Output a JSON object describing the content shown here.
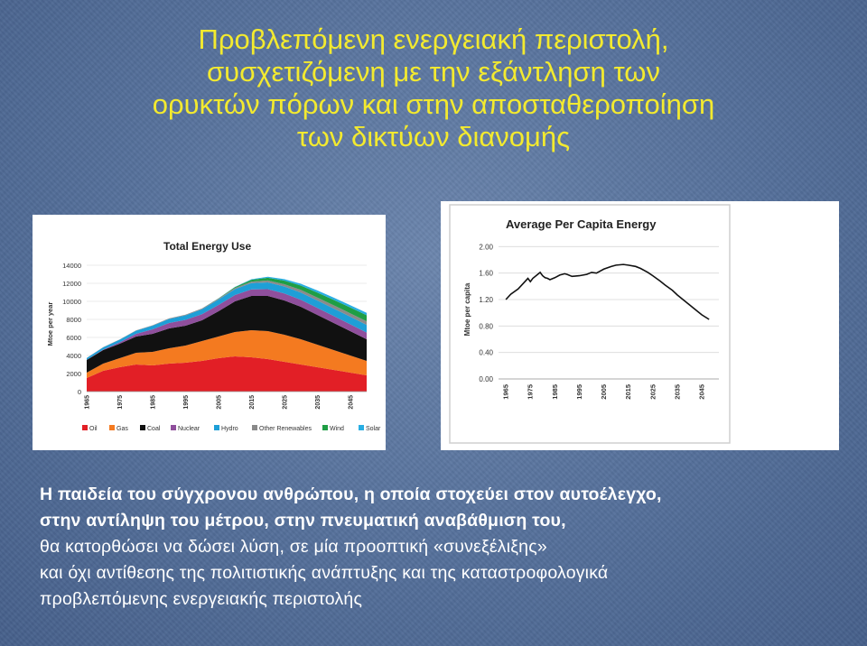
{
  "slide": {
    "title_lines": [
      "Προβλεπόμενη ενεργειακή περιστολή,",
      "συσχετιζόμενη με την εξάντληση των",
      "ορυκτών πόρων και στην αποσταθεροποίηση",
      "των δικτύων διανομής"
    ],
    "body_lines": [
      "Η παιδεία του σύγχρονου ανθρώπου, η οποία στοχεύει στον αυτοέλεγχο,",
      "στην αντίληψη του μέτρου, στην πνευματική αναβάθμιση του,",
      " θα κατορθώσει να δώσει λύση, σε μία προοπτική «συνεξέλιξης»",
      "και όχι αντίθεσης της πολιτιστικής ανάπτυξης και της καταστροφολογικά",
      " προβλεπόμενης ενεργειακής περιστολής"
    ],
    "colors": {
      "title": "#f3ea2f",
      "body": "#ffffff",
      "background": "#55709b"
    }
  },
  "chart_data": [
    {
      "type": "area",
      "title": "Total Energy Use",
      "ylabel": "Mtoe per year",
      "xlabel": "",
      "x": [
        1965,
        1970,
        1975,
        1980,
        1985,
        1990,
        1995,
        2000,
        2005,
        2010,
        2015,
        2020,
        2025,
        2030,
        2035,
        2040,
        2045,
        2050
      ],
      "xticks": [
        "1965",
        "1975",
        "1985",
        "1995",
        "2005",
        "2015",
        "2025",
        "2035",
        "2045"
      ],
      "yticks": [
        "0",
        "2000",
        "4000",
        "6000",
        "8000",
        "10000",
        "12000",
        "14000"
      ],
      "ylim": [
        0,
        15000
      ],
      "stacked": true,
      "legend_position": "bottom",
      "series": [
        {
          "name": "Oil",
          "color": "#e21f26",
          "values": [
            1500,
            2300,
            2700,
            3000,
            2900,
            3100,
            3200,
            3400,
            3700,
            3900,
            3800,
            3600,
            3300,
            3000,
            2700,
            2400,
            2100,
            1800
          ]
        },
        {
          "name": "Gas",
          "color": "#f47a20",
          "values": [
            600,
            800,
            1000,
            1300,
            1500,
            1700,
            1900,
            2200,
            2400,
            2700,
            3000,
            3100,
            3000,
            2800,
            2500,
            2200,
            1900,
            1600
          ]
        },
        {
          "name": "Coal",
          "color": "#111111",
          "values": [
            1400,
            1500,
            1600,
            1800,
            2000,
            2200,
            2200,
            2300,
            2800,
            3400,
            3800,
            3900,
            3800,
            3600,
            3300,
            3000,
            2700,
            2400
          ]
        },
        {
          "name": "Nuclear",
          "color": "#8f4f9c",
          "values": [
            10,
            50,
            150,
            300,
            500,
            600,
            650,
            680,
            700,
            700,
            720,
            750,
            770,
            780,
            780,
            770,
            760,
            740
          ]
        },
        {
          "name": "Hydro",
          "color": "#1e9fd7",
          "values": [
            200,
            250,
            300,
            350,
            400,
            450,
            500,
            550,
            600,
            650,
            700,
            750,
            780,
            800,
            820,
            830,
            840,
            850
          ]
        },
        {
          "name": "Other Renewables",
          "color": "#8a8a8a",
          "values": [
            20,
            25,
            30,
            40,
            50,
            60,
            70,
            80,
            100,
            130,
            170,
            210,
            250,
            290,
            330,
            360,
            380,
            400
          ]
        },
        {
          "name": "Wind",
          "color": "#1f9e45",
          "values": [
            0,
            0,
            0,
            0,
            0,
            0,
            0,
            5,
            30,
            100,
            200,
            300,
            400,
            480,
            550,
            600,
            640,
            670
          ]
        },
        {
          "name": "Solar",
          "color": "#29aee3",
          "values": [
            0,
            0,
            0,
            0,
            0,
            0,
            0,
            0,
            5,
            20,
            60,
            110,
            160,
            200,
            230,
            250,
            260,
            270
          ]
        }
      ]
    },
    {
      "type": "line",
      "title": "Average Per Capita Energy",
      "ylabel": "Mtoe per capita",
      "xlabel": "",
      "xticks": [
        "1965",
        "1975",
        "1985",
        "1995",
        "2005",
        "2015",
        "2025",
        "2035",
        "2045"
      ],
      "yticks": [
        "0.00",
        "0.40",
        "0.80",
        "1.20",
        "1.60",
        "2.00"
      ],
      "ylim": [
        0,
        2.1
      ],
      "x": [
        1965,
        1967,
        1970,
        1972,
        1974,
        1975,
        1976,
        1978,
        1979,
        1980,
        1981,
        1982,
        1983,
        1985,
        1987,
        1989,
        1990,
        1992,
        1995,
        1998,
        2000,
        2002,
        2005,
        2008,
        2010,
        2013,
        2015,
        2018,
        2020,
        2023,
        2025,
        2028,
        2030,
        2033,
        2035,
        2038,
        2040,
        2043,
        2045,
        2048
      ],
      "series": [
        {
          "name": "",
          "color": "#111111",
          "values": [
            1.2,
            1.28,
            1.36,
            1.44,
            1.52,
            1.47,
            1.52,
            1.58,
            1.61,
            1.56,
            1.53,
            1.52,
            1.5,
            1.53,
            1.57,
            1.59,
            1.58,
            1.55,
            1.56,
            1.58,
            1.61,
            1.6,
            1.66,
            1.7,
            1.72,
            1.73,
            1.72,
            1.7,
            1.67,
            1.61,
            1.56,
            1.48,
            1.42,
            1.34,
            1.27,
            1.18,
            1.12,
            1.03,
            0.97,
            0.9
          ]
        }
      ]
    }
  ]
}
